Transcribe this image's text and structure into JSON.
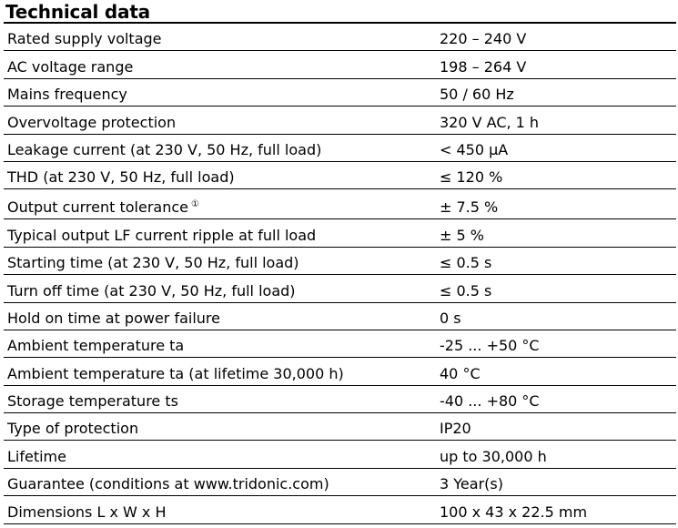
{
  "header": {
    "title": "Technical data"
  },
  "rows": [
    {
      "label": "Rated supply voltage",
      "value": "220 – 240 V"
    },
    {
      "label": "AC voltage range",
      "value": "198 – 264 V"
    },
    {
      "label": "Mains frequency",
      "value": "50 / 60 Hz"
    },
    {
      "label": "Overvoltage protection",
      "value": "320 V AC, 1 h"
    },
    {
      "label": "Leakage current (at 230 V, 50 Hz, full load)",
      "value": "< 450 µA"
    },
    {
      "label": "THD (at 230 V, 50 Hz, full load)",
      "value": "≤ 120 %"
    },
    {
      "label": "Output current tolerance",
      "footnote": "①",
      "value": "± 7.5 %"
    },
    {
      "label": "Typical output LF current ripple at full load",
      "value": "± 5 %"
    },
    {
      "label": "Starting time (at 230 V, 50 Hz, full load)",
      "value": "≤ 0.5 s"
    },
    {
      "label": "Turn off time (at 230 V, 50 Hz, full load)",
      "value": "≤ 0.5 s"
    },
    {
      "label": "Hold on time at power failure",
      "value": "0 s"
    },
    {
      "label": "Ambient temperature ta",
      "value": "-25 ... +50 °C"
    },
    {
      "label": "Ambient temperature ta (at lifetime 30,000 h)",
      "value": "40 °C"
    },
    {
      "label": "Storage temperature ts",
      "value": "-40 ... +80 °C"
    },
    {
      "label": "Type of protection",
      "value": "IP20"
    },
    {
      "label": "Lifetime",
      "value": "up to 30,000 h"
    },
    {
      "label": "Guarantee (conditions at www.tridonic.com)",
      "value": "3 Year(s)"
    },
    {
      "label": "Dimensions L x W x H",
      "value": "100 x 43 x 22.5 mm"
    }
  ]
}
